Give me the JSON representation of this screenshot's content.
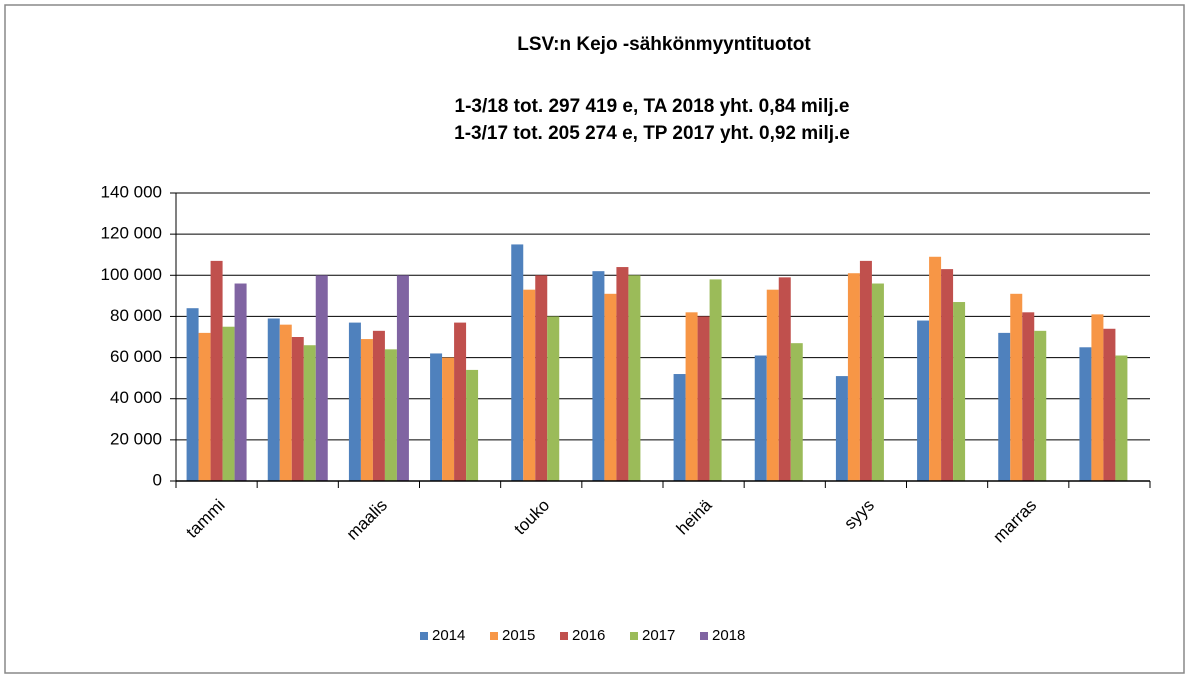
{
  "chart_data": {
    "type": "bar",
    "title": "LSV:n Kejo -sähkönmyyntituotot",
    "subtitle": [
      "1-3/18 tot. 297 419 e,  TA 2018 yht. 0,84 milj.e",
      "1-3/17 tot. 205 274 e,  TP 2017 yht. 0,92 milj.e"
    ],
    "categories": [
      "tammi",
      null,
      "maalis",
      null,
      "touko",
      null,
      "heinä",
      null,
      "syys",
      null,
      "marras",
      null
    ],
    "series": [
      {
        "name": "2014",
        "color": "#4f81bd",
        "values": [
          84000,
          79000,
          77000,
          62000,
          115000,
          102000,
          52000,
          61000,
          51000,
          78000,
          72000,
          65000
        ]
      },
      {
        "name": "2015",
        "color": "#f79646",
        "values": [
          72000,
          76000,
          69000,
          60000,
          93000,
          91000,
          82000,
          93000,
          101000,
          109000,
          91000,
          81000
        ]
      },
      {
        "name": "2016",
        "color": "#c0504d",
        "values": [
          107000,
          70000,
          73000,
          77000,
          100000,
          104000,
          80000,
          99000,
          107000,
          103000,
          82000,
          74000
        ]
      },
      {
        "name": "2017",
        "color": "#9bbb59",
        "values": [
          75000,
          66000,
          64000,
          54000,
          80000,
          100000,
          98000,
          67000,
          96000,
          87000,
          73000,
          61000
        ]
      },
      {
        "name": "2018",
        "color": "#8064a2",
        "values": [
          96000,
          100000,
          100000,
          null,
          null,
          null,
          null,
          null,
          null,
          null,
          null,
          null
        ]
      }
    ],
    "ylim": [
      0,
      140000
    ],
    "yticks": [
      0,
      {
        "value": 20000,
        "label": "20 000"
      },
      {
        "value": 40000,
        "label": "40 000"
      },
      {
        "value": 60000,
        "label": "60 000"
      },
      {
        "value": 80000,
        "label": "80 000"
      },
      {
        "value": 100000,
        "label": "100 000"
      },
      {
        "value": 120000,
        "label": "120 000"
      },
      {
        "value": 140000,
        "label": "140 000"
      }
    ],
    "grid": true,
    "legend": "bottom"
  }
}
